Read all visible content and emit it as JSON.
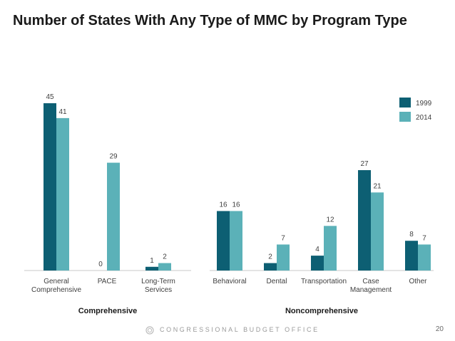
{
  "title": "Number of States With Any Type of MMC by Program Type",
  "footer": {
    "org": "CONGRESSIONAL BUDGET OFFICE",
    "page": "20"
  },
  "colors": {
    "1999": "#0d5f73",
    "2014": "#5bb1b8",
    "baseline": "#c8c8c8",
    "text": "#404040"
  },
  "chart_data": {
    "type": "bar",
    "title": "Number of States With Any Type of MMC by Program Type",
    "legend": {
      "entries": [
        "1999",
        "2014"
      ],
      "placement": "top-right"
    },
    "grid": false,
    "ylim": [
      0,
      45
    ],
    "groups": [
      {
        "name": "Comprehensive",
        "categories": [
          {
            "label": [
              "General",
              "Comprehensive"
            ],
            "v1999": 45,
            "v2014": 41
          },
          {
            "label": [
              "PACE"
            ],
            "v1999": 0,
            "v2014": 29
          },
          {
            "label": [
              "Long-Term",
              "Services"
            ],
            "v1999": 1,
            "v2014": 2
          }
        ]
      },
      {
        "name": "Noncomprehensive",
        "categories": [
          {
            "label": [
              "Behavioral"
            ],
            "v1999": 16,
            "v2014": 16
          },
          {
            "label": [
              "Dental"
            ],
            "v1999": 2,
            "v2014": 7
          },
          {
            "label": [
              "Transportation"
            ],
            "v1999": 4,
            "v2014": 12
          },
          {
            "label": [
              "Case",
              "Management"
            ],
            "v1999": 27,
            "v2014": 21
          },
          {
            "label": [
              "Other"
            ],
            "v1999": 8,
            "v2014": 7
          }
        ]
      }
    ]
  }
}
